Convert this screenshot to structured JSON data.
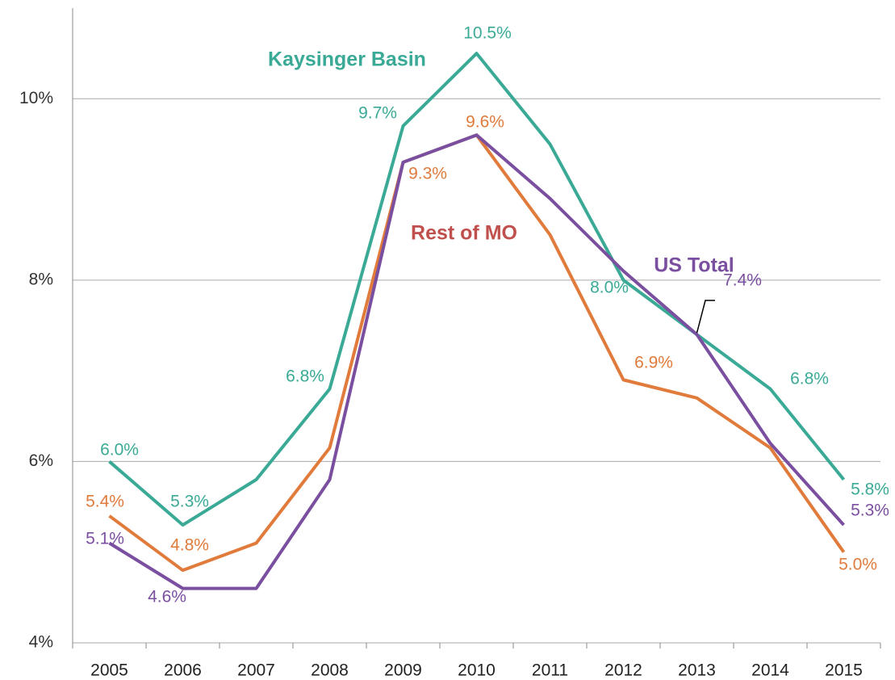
{
  "chart_data": {
    "type": "line",
    "categories": [
      "2005",
      "2006",
      "2007",
      "2008",
      "2009",
      "2010",
      "2011",
      "2012",
      "2013",
      "2014",
      "2015"
    ],
    "ylim": [
      4,
      11
    ],
    "yticks": [
      {
        "value": 4,
        "label": "4%"
      },
      {
        "value": 6,
        "label": "6%"
      },
      {
        "value": 8,
        "label": "8%"
      },
      {
        "value": 10,
        "label": "10%"
      }
    ],
    "grid": true,
    "series": [
      {
        "name": "Kaysinger Basin",
        "color": "#3aaa96",
        "values": [
          6.0,
          5.3,
          5.8,
          6.8,
          9.7,
          10.5,
          9.5,
          8.0,
          7.4,
          6.8,
          5.8
        ],
        "value_labels": [
          "6.0%",
          "5.3%",
          null,
          "6.8%",
          "9.7%",
          "10.5%",
          null,
          "8.0%",
          null,
          "6.8%",
          "5.8%"
        ]
      },
      {
        "name": "Rest of MO",
        "color": "#e07b3c",
        "values": [
          5.4,
          4.8,
          5.1,
          6.15,
          9.3,
          9.6,
          8.5,
          6.9,
          6.7,
          6.15,
          5.0
        ],
        "value_labels": [
          "5.4%",
          "4.8%",
          null,
          null,
          "9.3%",
          "9.6%",
          null,
          "6.9%",
          null,
          null,
          "5.0%"
        ]
      },
      {
        "name": "US Total",
        "color": "#7b4fa0",
        "values": [
          5.1,
          4.6,
          4.6,
          5.8,
          9.3,
          9.6,
          8.9,
          8.1,
          7.4,
          6.2,
          5.3
        ],
        "value_labels": [
          "5.1%",
          "4.6%",
          null,
          null,
          null,
          null,
          null,
          null,
          "7.4%",
          null,
          "5.3%"
        ]
      }
    ]
  }
}
